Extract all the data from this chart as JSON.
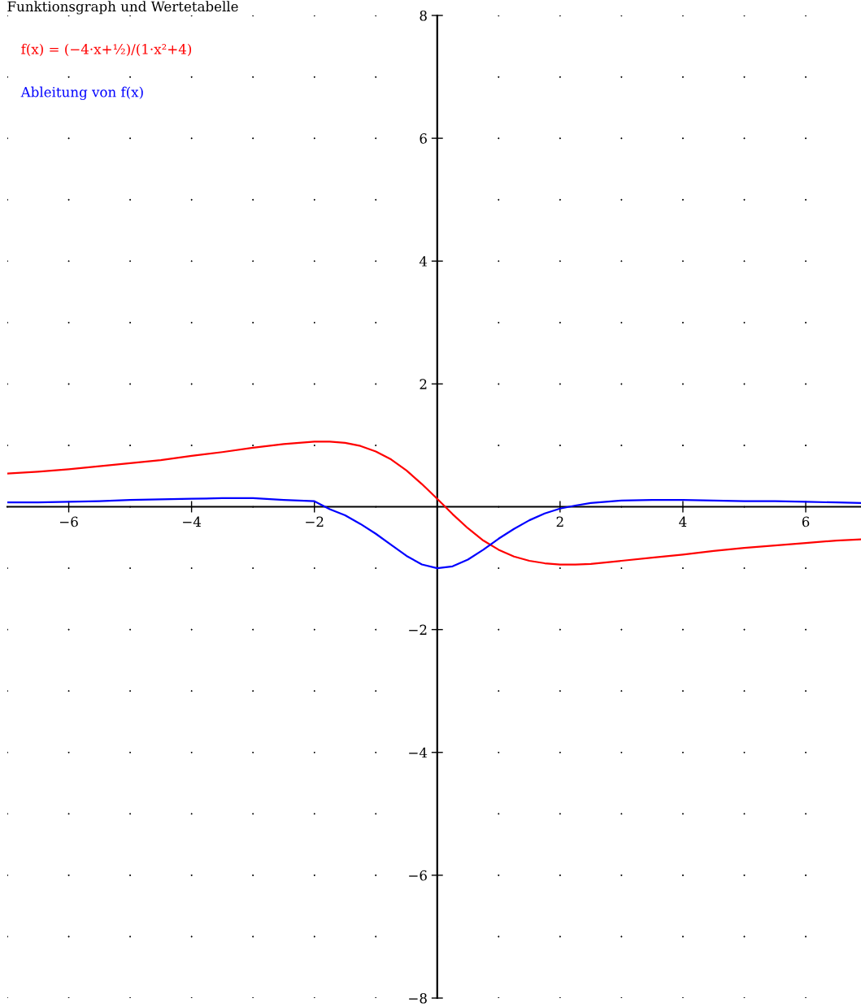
{
  "chart_data": {
    "type": "line",
    "title": "Funktionsgraph und Wertetabelle",
    "x": [
      -7,
      -6.5,
      -6,
      -5.5,
      -5,
      -4.5,
      -4,
      -3.5,
      -3,
      -2.5,
      -2,
      -1.75,
      -1.5,
      -1.25,
      -1,
      -0.75,
      -0.5,
      -0.25,
      0,
      0.25,
      0.5,
      0.75,
      1,
      1.25,
      1.5,
      1.75,
      2,
      2.25,
      2.5,
      3,
      3.5,
      4,
      4.5,
      5,
      5.5,
      6,
      6.5,
      6.9
    ],
    "series": [
      {
        "name": "f(x) = (−4·x+½)/(1·x²+4)",
        "color": "#ff0000",
        "values": [
          0.54,
          0.57,
          0.61,
          0.66,
          0.71,
          0.76,
          0.83,
          0.89,
          0.96,
          1.02,
          1.06,
          1.06,
          1.04,
          0.99,
          0.9,
          0.77,
          0.59,
          0.37,
          0.13,
          -0.12,
          -0.35,
          -0.55,
          -0.7,
          -0.81,
          -0.88,
          -0.92,
          -0.94,
          -0.94,
          -0.93,
          -0.88,
          -0.83,
          -0.78,
          -0.72,
          -0.67,
          -0.63,
          -0.59,
          -0.55,
          -0.53
        ]
      },
      {
        "name": "Ableitung von f(x)",
        "color": "#0000ff",
        "values": [
          0.07,
          0.07,
          0.08,
          0.09,
          0.11,
          0.12,
          0.13,
          0.14,
          0.14,
          0.11,
          0.09,
          -0.04,
          -0.14,
          -0.28,
          -0.44,
          -0.62,
          -0.8,
          -0.94,
          -1.0,
          -0.97,
          -0.86,
          -0.7,
          -0.52,
          -0.36,
          -0.22,
          -0.11,
          -0.03,
          0.02,
          0.06,
          0.1,
          0.11,
          0.11,
          0.1,
          0.09,
          0.09,
          0.08,
          0.07,
          0.06
        ]
      }
    ],
    "xlim": [
      -7,
      6.9
    ],
    "ylim": [
      -8,
      8
    ],
    "xticks": [
      -6,
      -4,
      -2,
      2,
      4,
      6
    ],
    "yticks": [
      -8,
      -6,
      -4,
      -2,
      2,
      4,
      6,
      8
    ],
    "grid": true,
    "legend": "top left",
    "marker": "none",
    "line_style": "solid"
  }
}
